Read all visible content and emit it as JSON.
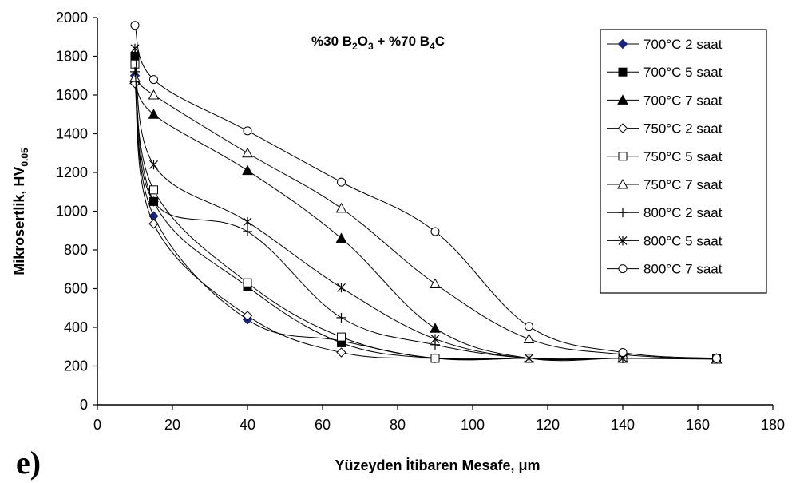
{
  "chart_data": {
    "type": "line",
    "xlabel": "Yüzeyden İtibaren Mesafe, μm",
    "ylabel_main": "Mikrosertlik, HV",
    "ylabel_sub": "0.05",
    "panel_label": "e)",
    "annotation": {
      "parts": [
        {
          "t": "%30 B",
          "sub": false
        },
        {
          "t": "2",
          "sub": true
        },
        {
          "t": "O",
          "sub": false
        },
        {
          "t": "3",
          "sub": true
        },
        {
          "t": " + %70 B",
          "sub": false
        },
        {
          "t": "4",
          "sub": true
        },
        {
          "t": "C",
          "sub": false
        }
      ]
    },
    "xlim": [
      0,
      180
    ],
    "ylim": [
      0,
      2000
    ],
    "xticks": [
      0,
      20,
      40,
      60,
      80,
      100,
      120,
      140,
      160,
      180
    ],
    "yticks": [
      0,
      200,
      400,
      600,
      800,
      1000,
      1200,
      1400,
      1600,
      1800,
      2000
    ],
    "legend_position": "top-right",
    "series": [
      {
        "name": "700°C 2 saat",
        "marker": "diamond-filled",
        "x": [
          10,
          15,
          40,
          65,
          90,
          115,
          140,
          165
        ],
        "y": [
          1700,
          975,
          440,
          330,
          240,
          240,
          240,
          240
        ]
      },
      {
        "name": "700°C 5 saat",
        "marker": "square-filled",
        "x": [
          10,
          15,
          40,
          65,
          90,
          115,
          140,
          165
        ],
        "y": [
          1800,
          1050,
          610,
          320,
          240,
          240,
          240,
          240
        ]
      },
      {
        "name": "700°C 7 saat",
        "marker": "triangle-filled",
        "x": [
          10,
          15,
          40,
          65,
          90,
          115,
          140,
          165
        ],
        "y": [
          1680,
          1500,
          1210,
          860,
          395,
          240,
          240,
          235
        ]
      },
      {
        "name": "750°C 2 saat",
        "marker": "diamond-open",
        "x": [
          10,
          15,
          40,
          65,
          90,
          115,
          140,
          165
        ],
        "y": [
          1660,
          935,
          460,
          270,
          240,
          240,
          240,
          240
        ]
      },
      {
        "name": "750°C 5 saat",
        "marker": "square-open",
        "x": [
          10,
          15,
          40,
          65,
          90,
          115,
          140,
          165
        ],
        "y": [
          1760,
          1110,
          630,
          350,
          240,
          240,
          240,
          240
        ]
      },
      {
        "name": "750°C 7 saat",
        "marker": "triangle-open",
        "x": [
          10,
          15,
          40,
          65,
          90,
          115,
          140,
          165
        ],
        "y": [
          1690,
          1600,
          1300,
          1015,
          625,
          340,
          260,
          235
        ]
      },
      {
        "name": "800°C 2 saat",
        "marker": "plus",
        "x": [
          10,
          15,
          40,
          65,
          90,
          115,
          140,
          165
        ],
        "y": [
          1720,
          1050,
          895,
          450,
          310,
          240,
          240,
          240
        ]
      },
      {
        "name": "800°C 5 saat",
        "marker": "asterisk",
        "x": [
          10,
          15,
          40,
          65,
          90,
          115,
          140,
          165
        ],
        "y": [
          1840,
          1240,
          945,
          605,
          340,
          240,
          240,
          240
        ]
      },
      {
        "name": "800°C 7 saat",
        "marker": "circle-open",
        "x": [
          10,
          15,
          40,
          65,
          90,
          115,
          140,
          165
        ],
        "y": [
          1960,
          1680,
          1415,
          1150,
          895,
          405,
          270,
          240
        ]
      }
    ]
  }
}
